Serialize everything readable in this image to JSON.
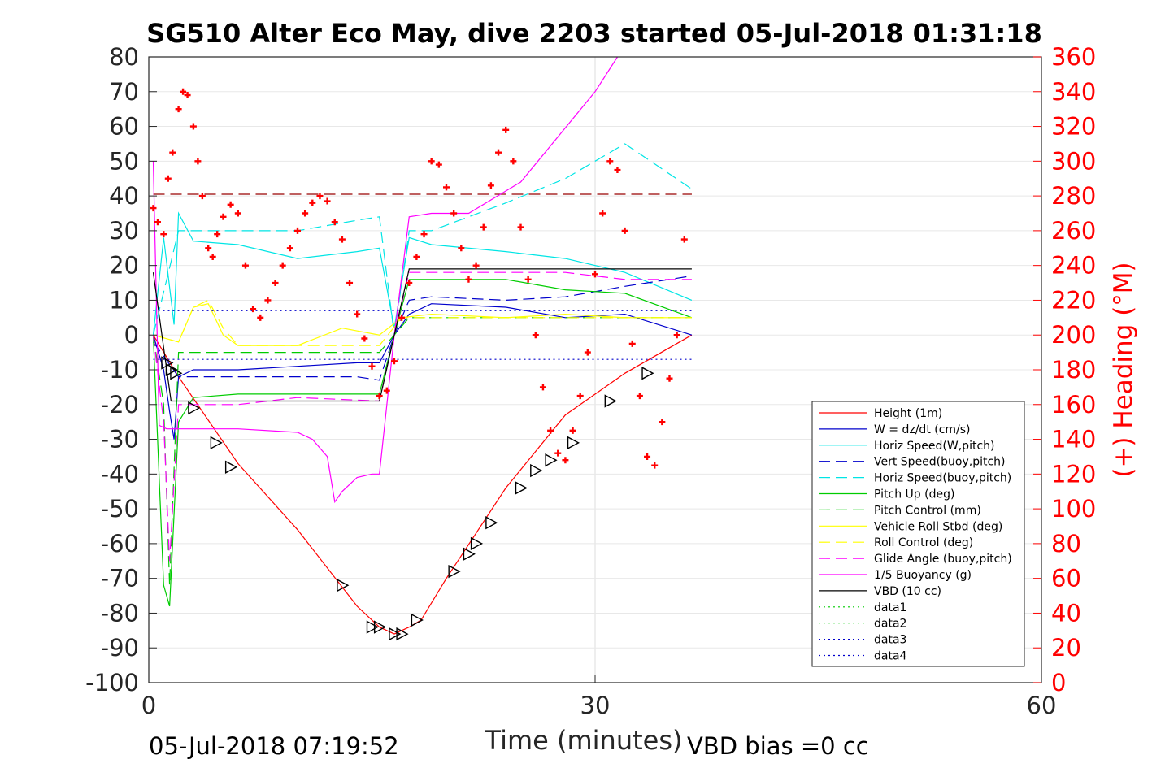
{
  "chart_data": {
    "type": "line",
    "title": "SG510 Alter Eco May, dive 2203 started 05-Jul-2018 01:31:18",
    "xlabel": "Time (minutes)",
    "ylabel": "",
    "y2label": "(+) Heading (°M)",
    "xlim": [
      0,
      60
    ],
    "ylim": [
      -100,
      80
    ],
    "y2lim": [
      0,
      360
    ],
    "x_ticks": [
      0,
      30,
      60
    ],
    "y_ticks": [
      80,
      70,
      60,
      50,
      40,
      30,
      20,
      10,
      0,
      -10,
      -20,
      -30,
      -40,
      -50,
      -60,
      -70,
      -80,
      -90,
      -100
    ],
    "y2_ticks": [
      360,
      340,
      320,
      300,
      280,
      260,
      240,
      220,
      200,
      180,
      160,
      140,
      120,
      100,
      80,
      60,
      40,
      20,
      0
    ],
    "grid": "on",
    "legend_position": "lower-right",
    "footer_left": "05-Jul-2018 07:19:52",
    "footer_right": "VBD bias =0 cc",
    "series": [
      {
        "name": "Height (1m)",
        "color": "#ff0000",
        "style": "solid",
        "x": [
          0.3,
          2,
          6,
          10,
          14,
          15.5,
          16.5,
          17.5,
          18.3,
          20,
          24,
          28,
          32,
          36.5
        ],
        "y": [
          0,
          -12,
          -37,
          -56,
          -78,
          -84,
          -86,
          -84,
          -82,
          -70,
          -44,
          -23,
          -11,
          0
        ]
      },
      {
        "name": "W = dz/dt (cm/s)",
        "color": "#0000cc",
        "style": "solid",
        "x": [
          0.3,
          1,
          1.4,
          1.7,
          2,
          3,
          6,
          10,
          14,
          15.5,
          16.5,
          17.5,
          19,
          24,
          28,
          32,
          36.5
        ],
        "y": [
          0,
          -10,
          -22,
          -30,
          -12,
          -10,
          -10,
          -9,
          -8,
          -8,
          0,
          6,
          9,
          8,
          5,
          6,
          0
        ]
      },
      {
        "name": "Horiz Speed(W,pitch)",
        "color": "#00e5e5",
        "style": "solid",
        "x": [
          0.3,
          1,
          1.7,
          2,
          3,
          6,
          10,
          14,
          15.5,
          16.5,
          17.5,
          19,
          24,
          28,
          32,
          36.5
        ],
        "y": [
          0,
          28,
          3,
          35,
          27,
          26,
          22,
          24,
          25,
          2,
          28,
          26,
          24,
          22,
          18,
          10
        ]
      },
      {
        "name": "Vert Speed(buoy,pitch)",
        "color": "#0000cc",
        "style": "dashed",
        "x": [
          0.3,
          2,
          6,
          10,
          14,
          15.5,
          16.5,
          17.5,
          19,
          24,
          28,
          32,
          36.5
        ],
        "y": [
          -2,
          -12,
          -12,
          -12,
          -12,
          -13,
          0,
          10,
          11,
          10,
          11,
          14,
          17
        ]
      },
      {
        "name": "Horiz Speed(buoy,pitch)",
        "color": "#00e5e5",
        "style": "dashed",
        "x": [
          0.3,
          2,
          6,
          10,
          14,
          15.5,
          16.5,
          17.5,
          19,
          24,
          28,
          32,
          36.5
        ],
        "y": [
          0,
          30,
          30,
          30,
          33,
          34,
          0,
          30,
          30,
          38,
          45,
          55,
          42
        ]
      },
      {
        "name": "Pitch Up (deg)",
        "color": "#00cc00",
        "style": "solid",
        "x": [
          0.3,
          1,
          1.4,
          2,
          3,
          6,
          10,
          14,
          15.5,
          16.5,
          17.5,
          19,
          24,
          28,
          32,
          36.5
        ],
        "y": [
          0,
          -72,
          -78,
          -25,
          -18,
          -17,
          -17,
          -17,
          -17,
          0,
          16,
          16,
          16,
          13,
          12,
          5
        ]
      },
      {
        "name": "Pitch Control (mm)",
        "color": "#00cc00",
        "style": "dashed",
        "x": [
          0.3,
          1,
          1.4,
          2,
          3,
          10,
          15.5,
          16.5,
          17.5,
          24,
          32,
          36.5
        ],
        "y": [
          0,
          -20,
          -72,
          -5,
          -5,
          -5,
          -5,
          0,
          5,
          5,
          5,
          5
        ]
      },
      {
        "name": "Vehicle Roll Stbd (deg)",
        "color": "#ffff00",
        "style": "solid",
        "x": [
          0.3,
          2,
          3,
          4,
          5,
          6,
          10,
          13,
          15.5,
          17,
          19,
          24,
          28,
          32,
          36.5
        ],
        "y": [
          0,
          -2,
          8,
          9,
          0,
          -3,
          -3,
          2,
          0,
          5,
          6,
          5,
          6,
          5,
          5
        ]
      },
      {
        "name": "Roll Control (deg)",
        "color": "#ffff00",
        "style": "dashed",
        "x": [
          0.3,
          2,
          3,
          4,
          5,
          6,
          10,
          15.5,
          17,
          19,
          24,
          28,
          32,
          36.5
        ],
        "y": [
          0,
          -2,
          8,
          10,
          2,
          -3,
          -3,
          -3,
          5,
          5,
          5,
          5,
          5,
          5
        ]
      },
      {
        "name": "Glide Angle (buoy,pitch)",
        "color": "#ff00ff",
        "style": "dashed",
        "x": [
          0.3,
          1,
          1.4,
          2,
          3,
          6,
          10,
          15.5,
          16.5,
          17.5,
          19,
          24,
          28,
          32,
          36.5
        ],
        "y": [
          0,
          -25,
          -65,
          -20,
          -20,
          -20,
          -18,
          -19,
          0,
          18,
          18,
          18,
          18,
          16,
          16
        ]
      },
      {
        "name": "1/5 Buoyancy (g)",
        "color": "#ff00ff",
        "style": "solid",
        "x": [
          0.3,
          0.7,
          1.2,
          2,
          6,
          10,
          11,
          12,
          12.5,
          13,
          14,
          15,
          15.5,
          16.5,
          17.5,
          19,
          21.5,
          25,
          30,
          31.5
        ],
        "y": [
          50,
          -26,
          -27,
          -27,
          -27,
          -28,
          -30,
          -35,
          -48,
          -45,
          -41,
          -40,
          -40,
          0,
          34,
          35,
          35,
          44,
          70,
          80
        ]
      },
      {
        "name": "VBD (10 cc)",
        "color": "#000000",
        "style": "solid",
        "x": [
          0.3,
          1.5,
          2,
          15.5,
          16.5,
          17.5,
          36.5
        ],
        "y": [
          18,
          -19,
          -19,
          -19,
          0,
          19,
          19
        ]
      },
      {
        "name": "data1",
        "color": "#00cc00",
        "style": "dotted",
        "x": [],
        "y": []
      },
      {
        "name": "data2",
        "color": "#00cc00",
        "style": "dotted",
        "x": [],
        "y": []
      },
      {
        "name": "data3",
        "color": "#0000cc",
        "style": "dotted",
        "x": [
          0.3,
          36.5
        ],
        "y": [
          7,
          7
        ]
      },
      {
        "name": "data4",
        "color": "#0000cc",
        "style": "dotted",
        "x": [
          0.3,
          36.5
        ],
        "y": [
          -7,
          -7
        ]
      }
    ],
    "reference_line": {
      "y": 40.5,
      "color": "#990000",
      "style": "dashed",
      "x": [
        0.3,
        36.5
      ]
    },
    "heading_markers": {
      "color": "#ff0000",
      "symbol": "+",
      "x": [
        0.3,
        0.6,
        1,
        1.3,
        1.6,
        2,
        2.3,
        2.6,
        3,
        3.3,
        3.6,
        4,
        4.3,
        4.6,
        5,
        5.5,
        6,
        6.5,
        7,
        7.5,
        8,
        8.5,
        9,
        9.5,
        10,
        10.5,
        11,
        11.5,
        12,
        12.5,
        13,
        13.5,
        14,
        14.5,
        15,
        15.5,
        16,
        16.5,
        17,
        17.5,
        18,
        18.5,
        19,
        19.5,
        20,
        20.5,
        21,
        21.5,
        22,
        22.5,
        23,
        23.5,
        24,
        24.5,
        25,
        25.5,
        26,
        26.5,
        27,
        27.5,
        28,
        28.5,
        29,
        29.5,
        30,
        30.5,
        31,
        31.5,
        32,
        32.5,
        33,
        33.5,
        34,
        34.5,
        35,
        35.5,
        36
      ],
      "y": [
        273,
        265,
        258,
        290,
        305,
        330,
        340,
        338,
        320,
        300,
        280,
        250,
        245,
        258,
        268,
        275,
        270,
        240,
        215,
        210,
        220,
        230,
        240,
        250,
        260,
        270,
        276,
        280,
        277,
        265,
        255,
        230,
        212,
        198,
        182,
        165,
        168,
        185,
        210,
        230,
        245,
        258,
        300,
        298,
        285,
        270,
        250,
        232,
        240,
        262,
        286,
        305,
        318,
        300,
        262,
        232,
        200,
        170,
        145,
        132,
        128,
        145,
        165,
        190,
        235,
        270,
        300,
        295,
        260,
        195,
        165,
        130,
        125,
        150,
        175,
        200,
        255
      ]
    },
    "depth_markers": {
      "color": "#000000",
      "symbol": "triangle",
      "x": [
        1.2,
        1.5,
        1.8,
        3,
        4.5,
        5.5,
        13,
        15,
        15.5,
        16.5,
        17,
        18,
        20.5,
        21.5,
        22,
        23,
        25,
        26,
        27,
        28.5,
        31,
        33.5
      ],
      "y": [
        -8,
        -10,
        -11,
        -21,
        -31,
        -38,
        -72,
        -84,
        -84,
        -86,
        -86,
        -82,
        -68,
        -63,
        -60,
        -54,
        -44,
        -39,
        -36,
        -31,
        -19,
        -11
      ]
    }
  }
}
